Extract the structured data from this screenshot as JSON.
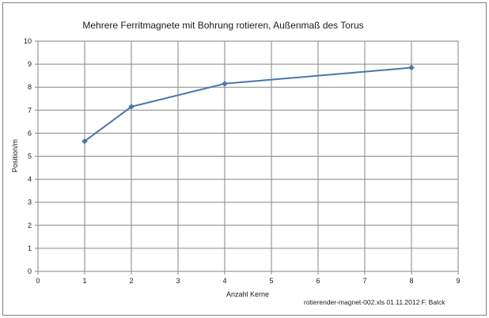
{
  "chart_data": {
    "type": "line",
    "title": "Mehrere Ferritmagnete mit Bohrung rotieren, Außenmaß des Torus",
    "xlabel": "Anzahl Kerne",
    "ylabel": "Position/m",
    "xlim": [
      0,
      9
    ],
    "ylim": [
      0,
      10
    ],
    "x_ticks": [
      "0",
      "1",
      "2",
      "3",
      "4",
      "5",
      "6",
      "7",
      "8",
      "9"
    ],
    "y_ticks": [
      "0",
      "1",
      "2",
      "3",
      "4",
      "5",
      "6",
      "7",
      "8",
      "9",
      "10"
    ],
    "grid": "horizontal and vertical",
    "legend": "none",
    "series": [
      {
        "x": [
          1,
          2,
          4,
          8
        ],
        "y": [
          5.65,
          7.15,
          8.15,
          8.85
        ],
        "color": "#4a76aa",
        "marker": "diamond"
      }
    ],
    "footnote": "rotierender-magnet-002.xls  01.11.2012 F. Balck"
  }
}
